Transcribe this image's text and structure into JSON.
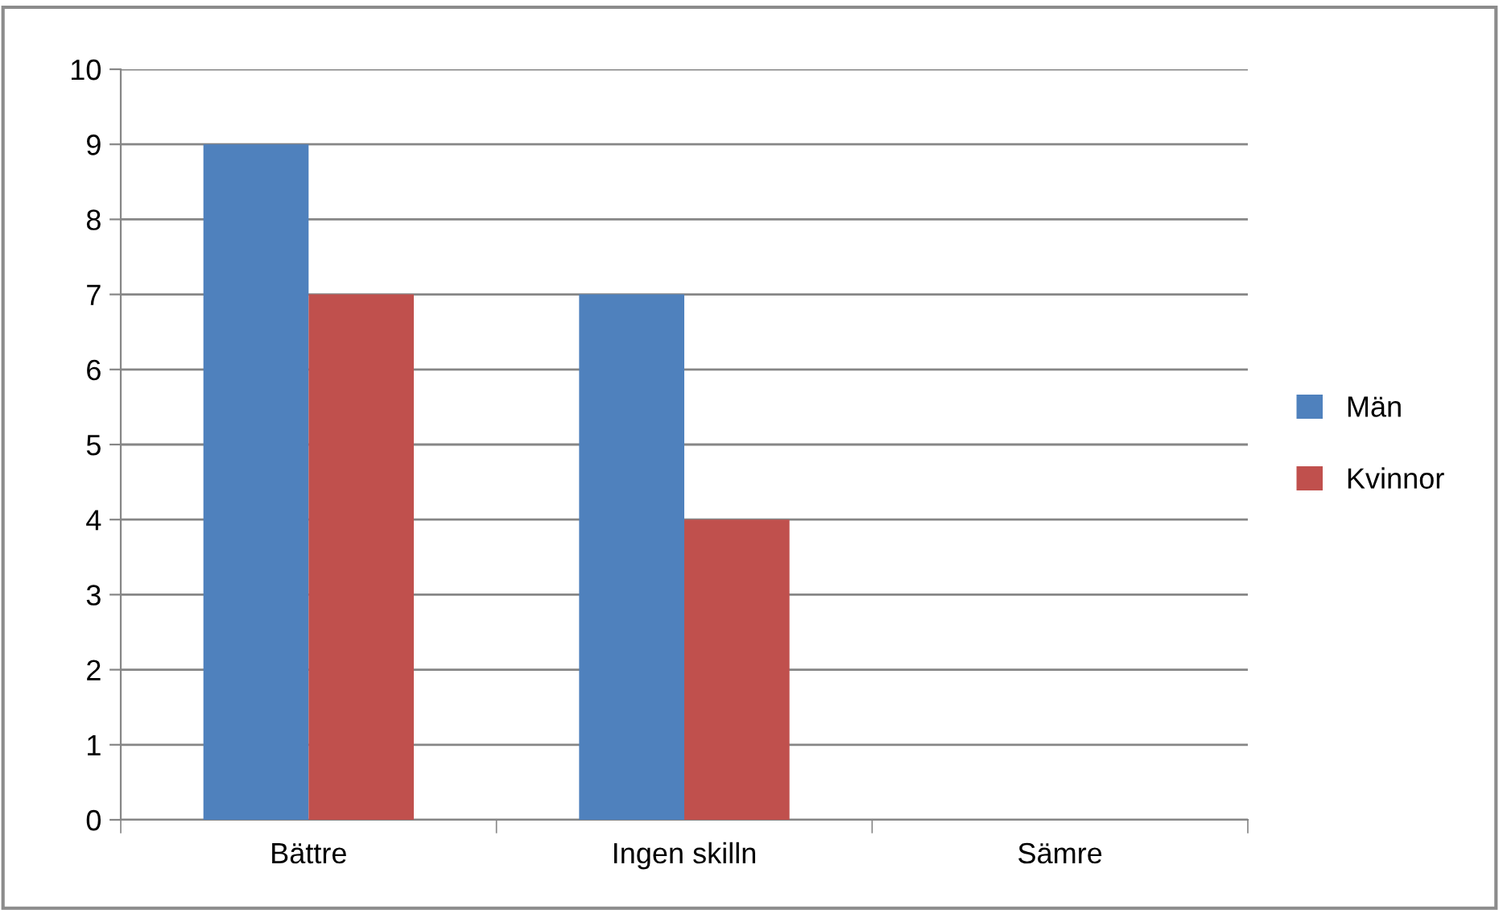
{
  "chart_data": {
    "type": "bar",
    "categories": [
      "Bättre",
      "Ingen skilln",
      "Sämre"
    ],
    "series": [
      {
        "name": "Män",
        "color": "#4f81bd",
        "values": [
          9,
          7,
          0
        ]
      },
      {
        "name": "Kvinnor",
        "color": "#c0504d",
        "values": [
          7,
          4,
          0
        ]
      }
    ],
    "ylim": [
      0,
      10
    ],
    "yticks": [
      0,
      1,
      2,
      3,
      4,
      5,
      6,
      7,
      8,
      9,
      10
    ],
    "grid": "y",
    "legend": "right"
  }
}
